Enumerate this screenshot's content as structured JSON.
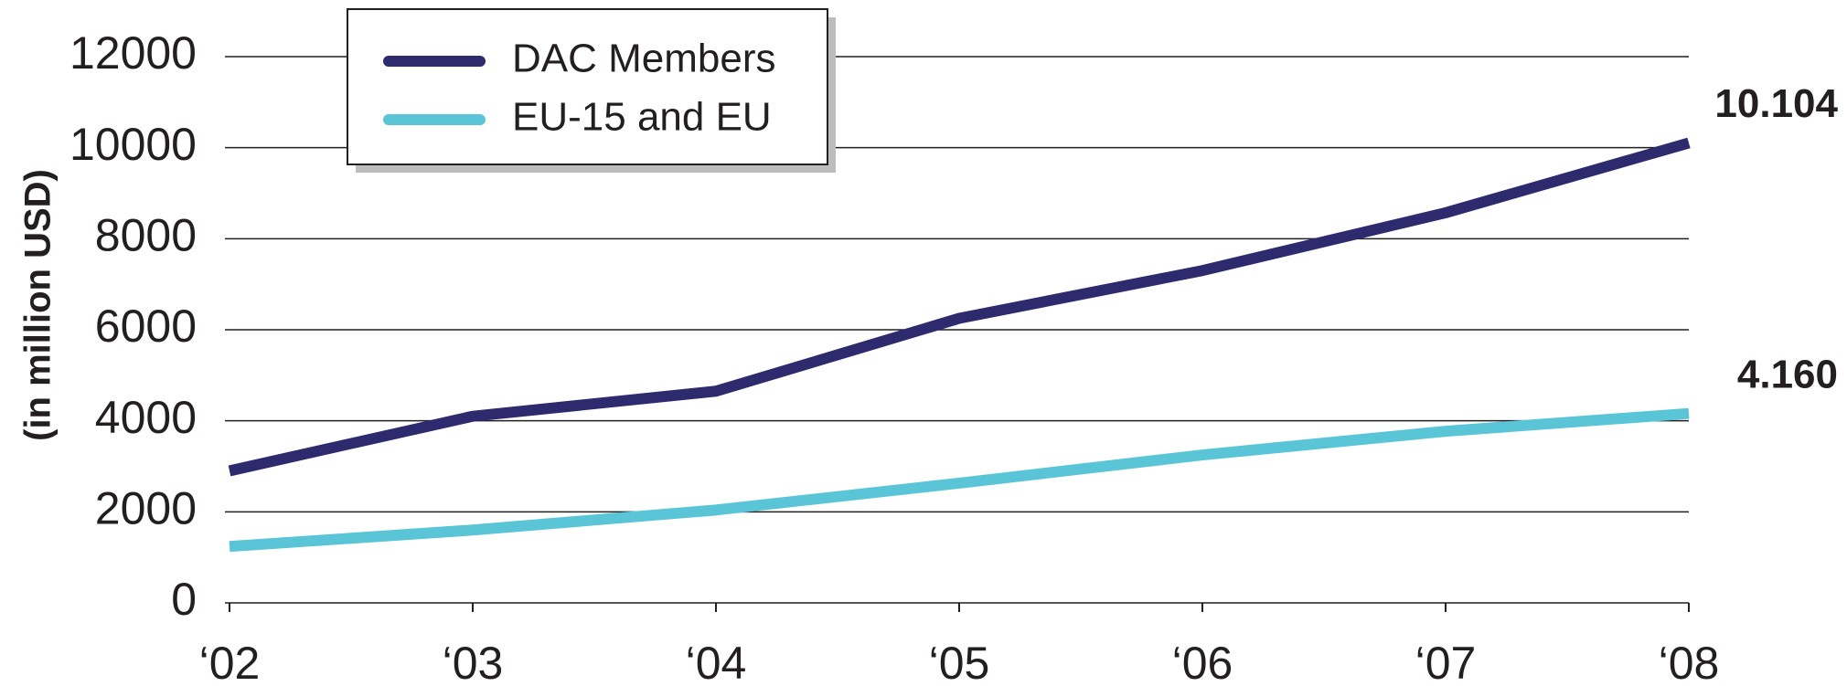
{
  "chart_data": {
    "type": "line",
    "y_axis_label": "(in million USD)",
    "categories": [
      "‘02",
      "‘03",
      "‘04",
      "‘05",
      "‘06",
      "‘07",
      "‘08"
    ],
    "series": [
      {
        "name": "DAC Members",
        "color": "#2e2a6e",
        "values": [
          2900,
          4100,
          4650,
          6250,
          7300,
          8570,
          10104
        ],
        "value_labels": [
          null,
          null,
          null,
          null,
          null,
          null,
          "10.104"
        ]
      },
      {
        "name": "EU-15 and EU",
        "color": "#5bc5d8",
        "values": [
          1240,
          1600,
          2040,
          2630,
          3250,
          3770,
          4160
        ],
        "value_labels": [
          null,
          null,
          null,
          null,
          null,
          null,
          "4.160"
        ]
      }
    ],
    "ylim": [
      0,
      12000
    ],
    "yticks": [
      0,
      2000,
      4000,
      6000,
      8000,
      10000,
      12000
    ],
    "grid": true,
    "legend": "upper left"
  }
}
